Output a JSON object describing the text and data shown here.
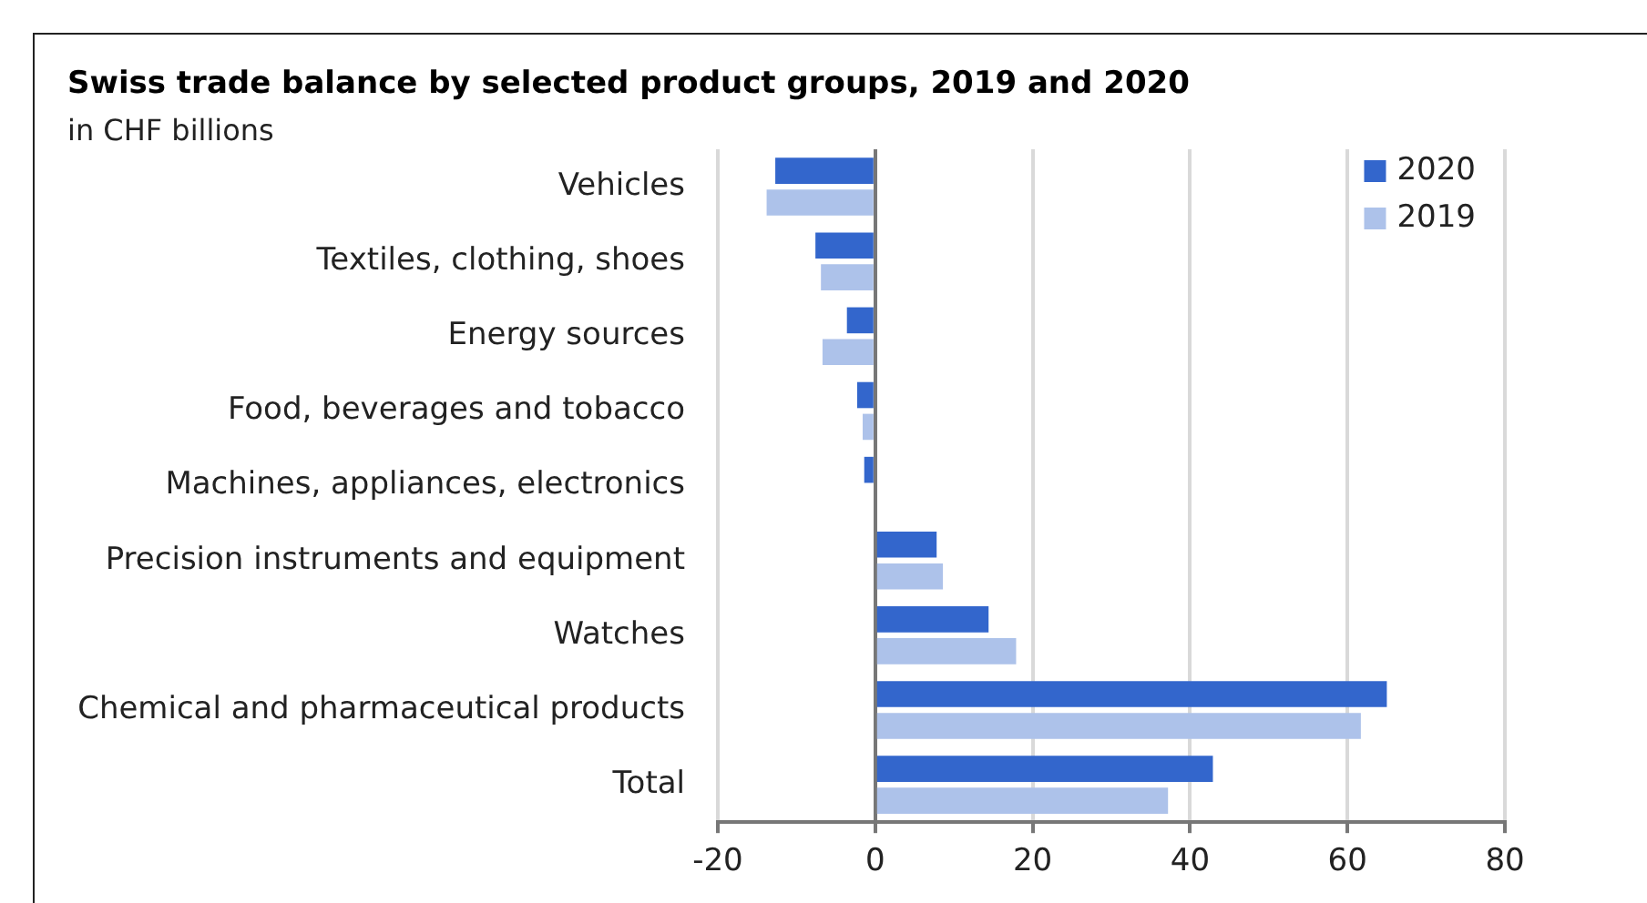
{
  "chart_data": {
    "type": "bar",
    "orientation": "horizontal",
    "title": "Swiss trade balance by selected product groups, 2019 and 2020",
    "subtitle": "in CHF billions",
    "categories": [
      "Vehicles",
      "Textiles, clothing, shoes",
      "Energy sources",
      "Food, beverages and tobacco",
      "Machines, appliances, electronics",
      "Precision instruments and equipment",
      "Watches",
      "Chemical and pharmaceutical products",
      "Total"
    ],
    "series": [
      {
        "name": "2020",
        "color": "#3366cc",
        "values": [
          -12.7,
          -7.6,
          -3.6,
          -2.3,
          -1.4,
          7.8,
          14.4,
          65.0,
          42.9
        ]
      },
      {
        "name": "2019",
        "color": "#adc2ea",
        "values": [
          -13.8,
          -6.9,
          -6.7,
          -1.6,
          0,
          8.6,
          17.9,
          61.7,
          37.2
        ]
      }
    ],
    "xlim": [
      -20,
      80
    ],
    "xticks": [
      -20,
      0,
      20,
      40,
      60,
      80
    ],
    "grid": "x",
    "legend": "top right"
  }
}
